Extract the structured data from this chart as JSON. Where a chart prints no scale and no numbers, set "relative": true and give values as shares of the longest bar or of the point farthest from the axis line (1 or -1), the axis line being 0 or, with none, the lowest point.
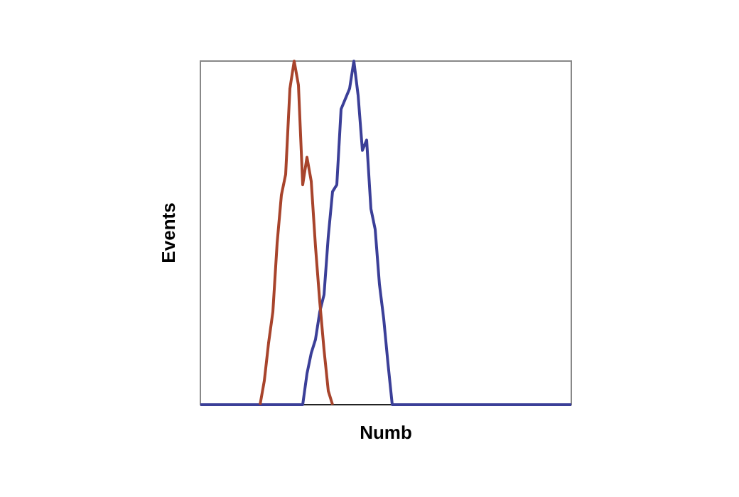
{
  "chart_data": {
    "type": "line",
    "xlabel": "Numb",
    "ylabel": "Events",
    "relative": true,
    "categories": [
      null,
      null,
      null,
      null,
      null,
      null,
      null,
      null,
      null,
      null,
      null,
      null,
      null,
      null,
      null,
      null,
      null,
      null,
      null,
      null,
      null,
      null,
      null,
      null,
      null,
      null,
      null,
      null,
      null,
      null,
      null,
      null,
      null,
      null,
      null,
      null,
      null,
      null,
      null,
      null,
      null,
      null,
      null,
      null,
      null,
      null,
      null,
      null,
      null,
      null,
      null,
      null,
      null,
      null,
      null,
      null,
      null,
      null,
      null,
      null,
      null,
      null,
      null,
      null,
      null,
      null,
      null,
      null,
      null,
      null,
      null,
      null,
      null,
      null,
      null,
      null,
      null,
      null,
      null,
      null,
      null,
      null,
      null,
      null,
      null,
      null,
      null,
      null
    ],
    "grid": false,
    "marker": "none",
    "line_style": "solid",
    "series": [
      {
        "color": "#3b3f98",
        "values": [
          0,
          0,
          0,
          0,
          0,
          0,
          0,
          0,
          0,
          0,
          0,
          0,
          0,
          0,
          0,
          0,
          0,
          0,
          0,
          0,
          0,
          0,
          0,
          0,
          0,
          0.09,
          0.15,
          0.19,
          0.27,
          0.32,
          0.49,
          0.62,
          0.64,
          0.86,
          0.89,
          0.92,
          1,
          0.9,
          0.74,
          0.77,
          0.57,
          0.51,
          0.35,
          0.25,
          0.12,
          0,
          0,
          0,
          0,
          0,
          0,
          0,
          0,
          0,
          0,
          0,
          0,
          0,
          0,
          0,
          0,
          0,
          0,
          0,
          0,
          0,
          0,
          0,
          0,
          0,
          0,
          0,
          0,
          0,
          0,
          0,
          0,
          0,
          0,
          0,
          0,
          0,
          0,
          0,
          0,
          0,
          0,
          0
        ]
      },
      {
        "color": "#a8442c",
        "values": [
          null,
          null,
          null,
          null,
          null,
          null,
          null,
          null,
          null,
          null,
          null,
          null,
          null,
          null,
          0,
          0.07,
          0.18,
          0.27,
          0.47,
          0.61,
          0.67,
          0.92,
          1,
          0.93,
          0.64,
          0.72,
          0.65,
          0.46,
          0.3,
          0.16,
          0.04,
          0,
          null,
          null,
          null,
          null,
          null,
          null,
          null,
          null,
          null,
          null,
          null,
          null,
          null,
          null,
          null,
          null,
          null,
          null,
          null,
          null,
          null,
          null,
          null,
          null,
          null,
          null,
          null,
          null,
          null,
          null,
          null,
          null,
          null,
          null,
          null,
          null,
          null,
          null,
          null,
          null,
          null,
          null,
          null,
          null,
          null,
          null,
          null,
          null,
          null,
          null,
          null,
          null,
          null,
          null,
          null,
          null
        ]
      }
    ]
  }
}
